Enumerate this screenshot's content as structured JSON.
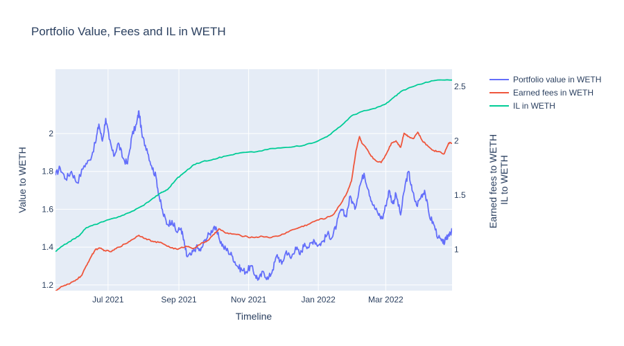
{
  "chart_data": {
    "type": "line",
    "title": "Portfolio Value, Fees and IL in WETH",
    "xlabel": "Timeline",
    "ylabel_left": "Value to WETH",
    "ylabel_right_lines": [
      "Earned fees to WETH",
      "IL to WETH"
    ],
    "x_range": [
      "2021-05-16",
      "2022-04-28"
    ],
    "x_ticks": [
      {
        "date": "2021-07-01",
        "label": "Jul 2021"
      },
      {
        "date": "2021-09-01",
        "label": "Sep 2021"
      },
      {
        "date": "2021-11-01",
        "label": "Nov 2021"
      },
      {
        "date": "2022-01-01",
        "label": "Jan 2022"
      },
      {
        "date": "2022-03-01",
        "label": "Mar 2022"
      }
    ],
    "y_left": {
      "range": [
        1.17,
        2.34
      ],
      "ticks": [
        1.2,
        1.4,
        1.6,
        1.8,
        2
      ],
      "tick_labels": [
        "1.2",
        "1.4",
        "1.6",
        "1.8",
        "2"
      ]
    },
    "y_right": {
      "range": [
        0.62,
        2.66
      ],
      "ticks": [
        1,
        1.5,
        2,
        2.5
      ],
      "tick_labels": [
        "1",
        "1.5",
        "2",
        "2.5"
      ]
    },
    "grid": true,
    "legend_position": "top-right, outside plot",
    "series": [
      {
        "name": "Portfolio value in WETH",
        "color": "#636efa",
        "axis": "left",
        "points": [
          [
            "2021-05-16",
            1.78
          ],
          [
            "2021-05-20",
            1.82
          ],
          [
            "2021-05-25",
            1.76
          ],
          [
            "2021-05-30",
            1.8
          ],
          [
            "2021-06-04",
            1.74
          ],
          [
            "2021-06-10",
            1.83
          ],
          [
            "2021-06-15",
            1.86
          ],
          [
            "2021-06-20",
            1.95
          ],
          [
            "2021-06-23",
            2.05
          ],
          [
            "2021-06-26",
            1.96
          ],
          [
            "2021-06-29",
            2.08
          ],
          [
            "2021-07-02",
            1.97
          ],
          [
            "2021-07-06",
            1.88
          ],
          [
            "2021-07-10",
            1.95
          ],
          [
            "2021-07-14",
            1.87
          ],
          [
            "2021-07-18",
            1.84
          ],
          [
            "2021-07-22",
            1.99
          ],
          [
            "2021-07-26",
            2.05
          ],
          [
            "2021-07-28",
            2.12
          ],
          [
            "2021-07-31",
            1.98
          ],
          [
            "2021-08-04",
            1.92
          ],
          [
            "2021-08-08",
            1.83
          ],
          [
            "2021-08-12",
            1.77
          ],
          [
            "2021-08-15",
            1.66
          ],
          [
            "2021-08-18",
            1.58
          ],
          [
            "2021-08-22",
            1.52
          ],
          [
            "2021-08-26",
            1.54
          ],
          [
            "2021-08-30",
            1.48
          ],
          [
            "2021-09-03",
            1.5
          ],
          [
            "2021-09-06",
            1.41
          ],
          [
            "2021-09-08",
            1.35
          ],
          [
            "2021-09-12",
            1.36
          ],
          [
            "2021-09-16",
            1.4
          ],
          [
            "2021-09-20",
            1.38
          ],
          [
            "2021-09-24",
            1.44
          ],
          [
            "2021-09-28",
            1.47
          ],
          [
            "2021-10-02",
            1.51
          ],
          [
            "2021-10-06",
            1.45
          ],
          [
            "2021-10-10",
            1.4
          ],
          [
            "2021-10-14",
            1.38
          ],
          [
            "2021-10-18",
            1.35
          ],
          [
            "2021-10-22",
            1.3
          ],
          [
            "2021-10-26",
            1.28
          ],
          [
            "2021-10-30",
            1.27
          ],
          [
            "2021-11-03",
            1.3
          ],
          [
            "2021-11-07",
            1.25
          ],
          [
            "2021-11-10",
            1.23
          ],
          [
            "2021-11-14",
            1.27
          ],
          [
            "2021-11-18",
            1.23
          ],
          [
            "2021-11-22",
            1.28
          ],
          [
            "2021-11-26",
            1.36
          ],
          [
            "2021-11-30",
            1.31
          ],
          [
            "2021-12-04",
            1.38
          ],
          [
            "2021-12-08",
            1.34
          ],
          [
            "2021-12-12",
            1.4
          ],
          [
            "2021-12-16",
            1.36
          ],
          [
            "2021-12-20",
            1.42
          ],
          [
            "2021-12-24",
            1.4
          ],
          [
            "2021-12-28",
            1.44
          ],
          [
            "2022-01-01",
            1.41
          ],
          [
            "2022-01-05",
            1.43
          ],
          [
            "2022-01-09",
            1.47
          ],
          [
            "2022-01-13",
            1.45
          ],
          [
            "2022-01-17",
            1.52
          ],
          [
            "2022-01-21",
            1.6
          ],
          [
            "2022-01-25",
            1.56
          ],
          [
            "2022-01-29",
            1.67
          ],
          [
            "2022-02-02",
            1.6
          ],
          [
            "2022-02-06",
            1.72
          ],
          [
            "2022-02-10",
            1.79
          ],
          [
            "2022-02-14",
            1.7
          ],
          [
            "2022-02-18",
            1.62
          ],
          [
            "2022-02-22",
            1.58
          ],
          [
            "2022-02-26",
            1.55
          ],
          [
            "2022-03-01",
            1.62
          ],
          [
            "2022-03-04",
            1.7
          ],
          [
            "2022-03-07",
            1.63
          ],
          [
            "2022-03-10",
            1.68
          ],
          [
            "2022-03-14",
            1.57
          ],
          [
            "2022-03-18",
            1.73
          ],
          [
            "2022-03-21",
            1.8
          ],
          [
            "2022-03-24",
            1.7
          ],
          [
            "2022-03-28",
            1.62
          ],
          [
            "2022-04-01",
            1.67
          ],
          [
            "2022-04-04",
            1.7
          ],
          [
            "2022-04-08",
            1.57
          ],
          [
            "2022-04-12",
            1.52
          ],
          [
            "2022-04-16",
            1.45
          ],
          [
            "2022-04-20",
            1.42
          ],
          [
            "2022-04-23",
            1.44
          ],
          [
            "2022-04-26",
            1.48
          ],
          [
            "2022-04-28",
            1.48
          ]
        ]
      },
      {
        "name": "Earned fees in WETH",
        "color": "#ef553b",
        "axis": "right",
        "points": [
          [
            "2021-05-16",
            0.62
          ],
          [
            "2021-05-22",
            0.66
          ],
          [
            "2021-05-28",
            0.68
          ],
          [
            "2021-06-03",
            0.72
          ],
          [
            "2021-06-08",
            0.76
          ],
          [
            "2021-06-12",
            0.85
          ],
          [
            "2021-06-16",
            0.93
          ],
          [
            "2021-06-20",
            1.0
          ],
          [
            "2021-06-24",
            1.01
          ],
          [
            "2021-06-28",
            0.99
          ],
          [
            "2021-07-04",
            0.98
          ],
          [
            "2021-07-10",
            1.02
          ],
          [
            "2021-07-16",
            1.05
          ],
          [
            "2021-07-22",
            1.09
          ],
          [
            "2021-07-28",
            1.13
          ],
          [
            "2021-08-03",
            1.1
          ],
          [
            "2021-08-10",
            1.07
          ],
          [
            "2021-08-17",
            1.06
          ],
          [
            "2021-08-24",
            1.02
          ],
          [
            "2021-08-31",
            1.0
          ],
          [
            "2021-09-07",
            1.03
          ],
          [
            "2021-09-14",
            1.01
          ],
          [
            "2021-09-20",
            1.05
          ],
          [
            "2021-09-26",
            1.08
          ],
          [
            "2021-10-02",
            1.14
          ],
          [
            "2021-10-06",
            1.19
          ],
          [
            "2021-10-12",
            1.15
          ],
          [
            "2021-10-20",
            1.14
          ],
          [
            "2021-10-28",
            1.12
          ],
          [
            "2021-11-05",
            1.11
          ],
          [
            "2021-11-13",
            1.12
          ],
          [
            "2021-11-21",
            1.11
          ],
          [
            "2021-11-29",
            1.13
          ],
          [
            "2021-12-07",
            1.17
          ],
          [
            "2021-12-15",
            1.2
          ],
          [
            "2021-12-23",
            1.23
          ],
          [
            "2021-12-31",
            1.27
          ],
          [
            "2022-01-08",
            1.29
          ],
          [
            "2022-01-14",
            1.32
          ],
          [
            "2022-01-20",
            1.41
          ],
          [
            "2022-01-26",
            1.52
          ],
          [
            "2022-01-30",
            1.63
          ],
          [
            "2022-02-03",
            1.91
          ],
          [
            "2022-02-06",
            2.04
          ],
          [
            "2022-02-08",
            1.98
          ],
          [
            "2022-02-12",
            1.93
          ],
          [
            "2022-02-16",
            1.86
          ],
          [
            "2022-02-20",
            1.82
          ],
          [
            "2022-02-25",
            1.8
          ],
          [
            "2022-03-01",
            1.87
          ],
          [
            "2022-03-06",
            1.98
          ],
          [
            "2022-03-10",
            2.0
          ],
          [
            "2022-03-14",
            1.94
          ],
          [
            "2022-03-17",
            2.07
          ],
          [
            "2022-03-21",
            2.04
          ],
          [
            "2022-03-25",
            2.02
          ],
          [
            "2022-03-29",
            2.08
          ],
          [
            "2022-04-02",
            2.0
          ],
          [
            "2022-04-07",
            1.95
          ],
          [
            "2022-04-12",
            1.91
          ],
          [
            "2022-04-17",
            1.9
          ],
          [
            "2022-04-21",
            1.88
          ],
          [
            "2022-04-25",
            1.98
          ],
          [
            "2022-04-28",
            1.98
          ]
        ]
      },
      {
        "name": "IL in WETH",
        "color": "#00cc96",
        "axis": "right",
        "points": [
          [
            "2021-05-16",
            0.98
          ],
          [
            "2021-05-22",
            1.03
          ],
          [
            "2021-05-28",
            1.07
          ],
          [
            "2021-06-05",
            1.12
          ],
          [
            "2021-06-12",
            1.2
          ],
          [
            "2021-06-20",
            1.23
          ],
          [
            "2021-06-28",
            1.26
          ],
          [
            "2021-07-10",
            1.3
          ],
          [
            "2021-07-20",
            1.34
          ],
          [
            "2021-07-31",
            1.4
          ],
          [
            "2021-08-08",
            1.46
          ],
          [
            "2021-08-16",
            1.52
          ],
          [
            "2021-08-22",
            1.55
          ],
          [
            "2021-08-30",
            1.65
          ],
          [
            "2021-09-06",
            1.71
          ],
          [
            "2021-09-14",
            1.78
          ],
          [
            "2021-09-22",
            1.81
          ],
          [
            "2021-10-01",
            1.83
          ],
          [
            "2021-10-12",
            1.86
          ],
          [
            "2021-10-25",
            1.89
          ],
          [
            "2021-11-08",
            1.9
          ],
          [
            "2021-11-22",
            1.93
          ],
          [
            "2021-12-06",
            1.94
          ],
          [
            "2021-12-20",
            1.96
          ],
          [
            "2022-01-01",
            2.0
          ],
          [
            "2022-01-10",
            2.05
          ],
          [
            "2022-01-20",
            2.13
          ],
          [
            "2022-01-30",
            2.23
          ],
          [
            "2022-02-08",
            2.27
          ],
          [
            "2022-02-20",
            2.3
          ],
          [
            "2022-03-01",
            2.34
          ],
          [
            "2022-03-08",
            2.4
          ],
          [
            "2022-03-15",
            2.46
          ],
          [
            "2022-03-25",
            2.5
          ],
          [
            "2022-04-05",
            2.54
          ],
          [
            "2022-04-15",
            2.56
          ],
          [
            "2022-04-28",
            2.56
          ]
        ]
      }
    ]
  }
}
